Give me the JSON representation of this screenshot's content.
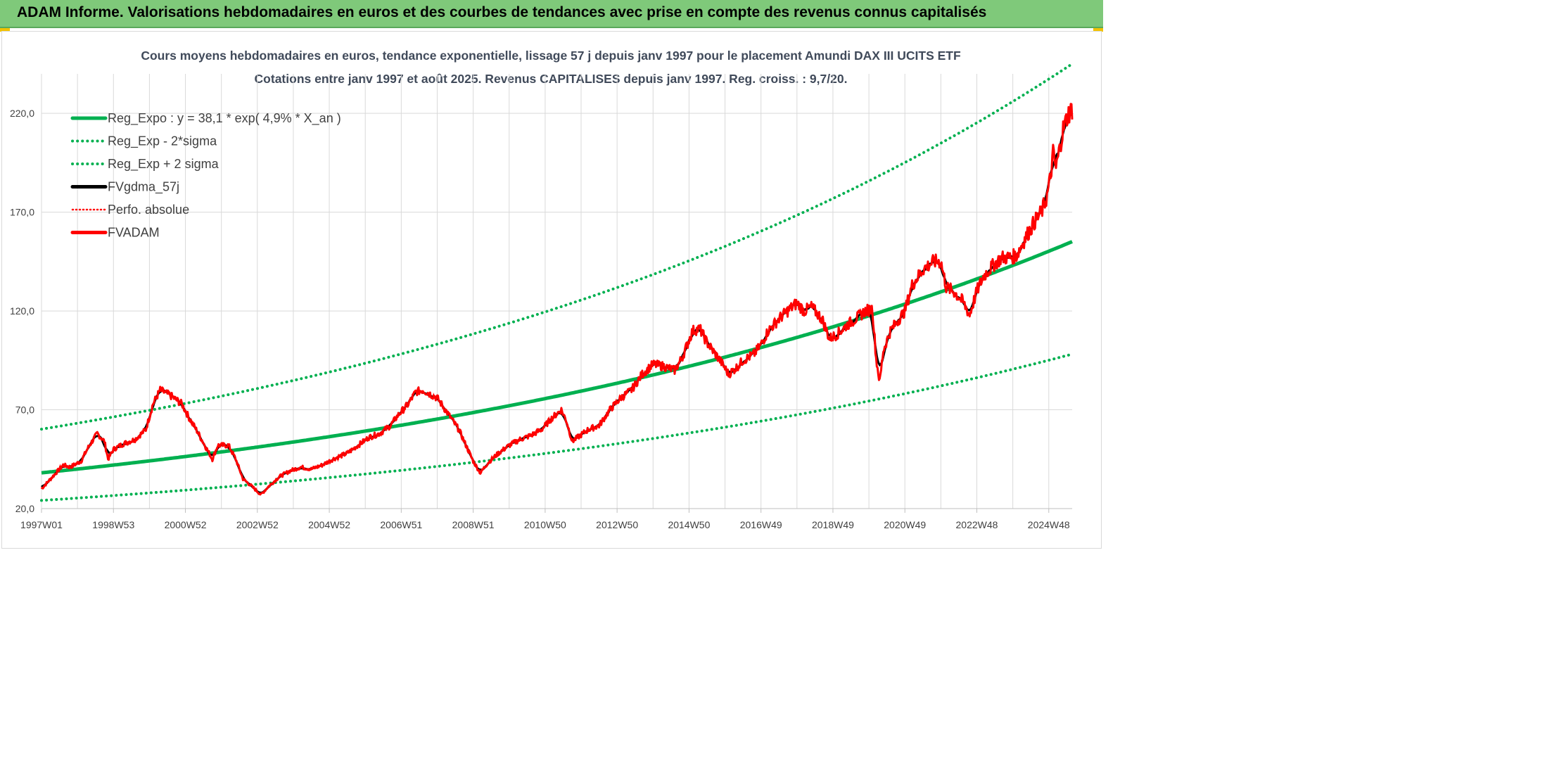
{
  "banner": {
    "title": "ADAM Informe. Valorisations hebdomadaires en euros et des courbes de tendances avec prise en compte des revenus connus capitalisés"
  },
  "colors": {
    "banner_bg": "#7fc97a",
    "regression": "#00b050",
    "smoothed": "#000000",
    "price": "#ff0000",
    "perfo": "#ff0000",
    "grid": "#d9d9d9"
  },
  "chart_data": {
    "type": "line",
    "title": "Cours moyens hebdomadaires en euros, tendance exponentielle, lissage 57 j depuis janv 1997 pour le placement Amundi DAX III UCITS ETF",
    "subtitle": "Cotations entre janv 1997 et août 2025. Revenus CAPITALISES depuis janv 1997. Reg. croiss. : 9,7/20.",
    "ylim": [
      20,
      240
    ],
    "yticks": [
      20,
      70,
      120,
      170,
      220
    ],
    "ytick_labels": [
      "20,0",
      "70,0",
      "120,0",
      "170,0",
      "220,0"
    ],
    "xlim": [
      1997.0,
      2025.65
    ],
    "xticks": [
      {
        "x": 1997.0,
        "label": "1997W01"
      },
      {
        "x": 1999.0,
        "label": "1998W53"
      },
      {
        "x": 2001.0,
        "label": "2000W52"
      },
      {
        "x": 2003.0,
        "label": "2002W52"
      },
      {
        "x": 2005.0,
        "label": "2004W52"
      },
      {
        "x": 2007.0,
        "label": "2006W51"
      },
      {
        "x": 2009.0,
        "label": "2008W51"
      },
      {
        "x": 2011.0,
        "label": "2010W50"
      },
      {
        "x": 2013.0,
        "label": "2012W50"
      },
      {
        "x": 2015.0,
        "label": "2014W50"
      },
      {
        "x": 2017.0,
        "label": "2016W49"
      },
      {
        "x": 2019.0,
        "label": "2018W49"
      },
      {
        "x": 2021.0,
        "label": "2020W49"
      },
      {
        "x": 2023.0,
        "label": "2022W48"
      },
      {
        "x": 2025.0,
        "label": "2024W48"
      }
    ],
    "legend_position": "top-left",
    "regression": {
      "a": 38.1,
      "rate": 0.049,
      "sigma_factor": 1.58
    },
    "series": [
      {
        "name": "Reg_Expo : y = 38,1 * exp( 4,9% *  X_an )",
        "key": "reg",
        "color": "#00b050",
        "style": "solid"
      },
      {
        "name": "Reg_Exp - 2*sigma",
        "key": "reg_low",
        "color": "#00b050",
        "style": "dotted"
      },
      {
        "name": "Reg_Exp + 2 sigma",
        "key": "reg_high",
        "color": "#00b050",
        "style": "dotted"
      },
      {
        "name": "FVgdma_57j",
        "key": "smooth",
        "color": "#000000",
        "style": "solid"
      },
      {
        "name": "Perfo. absolue",
        "key": "perfo",
        "color": "#ff0000",
        "style": "dotted"
      },
      {
        "name": "FVADAM",
        "key": "price",
        "color": "#ff0000",
        "style": "solid"
      }
    ],
    "price_points": [
      [
        1997.0,
        30
      ],
      [
        1997.3,
        36
      ],
      [
        1997.6,
        42
      ],
      [
        1997.8,
        41
      ],
      [
        1998.1,
        44
      ],
      [
        1998.3,
        51
      ],
      [
        1998.55,
        58
      ],
      [
        1998.75,
        54
      ],
      [
        1998.85,
        45
      ],
      [
        1999.0,
        50
      ],
      [
        1999.3,
        53
      ],
      [
        1999.6,
        55
      ],
      [
        1999.9,
        60
      ],
      [
        2000.1,
        73
      ],
      [
        2000.3,
        80
      ],
      [
        2000.6,
        77
      ],
      [
        2000.9,
        73
      ],
      [
        2001.1,
        66
      ],
      [
        2001.3,
        60
      ],
      [
        2001.6,
        50
      ],
      [
        2001.75,
        45
      ],
      [
        2001.9,
        52
      ],
      [
        2002.2,
        52
      ],
      [
        2002.4,
        45
      ],
      [
        2002.6,
        35
      ],
      [
        2002.8,
        32
      ],
      [
        2003.1,
        27
      ],
      [
        2003.3,
        31
      ],
      [
        2003.6,
        36
      ],
      [
        2003.9,
        39
      ],
      [
        2004.2,
        41
      ],
      [
        2004.5,
        40
      ],
      [
        2004.8,
        42
      ],
      [
        2005.1,
        45
      ],
      [
        2005.5,
        48
      ],
      [
        2005.8,
        52
      ],
      [
        2006.1,
        56
      ],
      [
        2006.4,
        58
      ],
      [
        2006.7,
        62
      ],
      [
        2006.9,
        67
      ],
      [
        2007.2,
        73
      ],
      [
        2007.4,
        79
      ],
      [
        2007.6,
        80
      ],
      [
        2007.8,
        78
      ],
      [
        2008.0,
        76
      ],
      [
        2008.3,
        68
      ],
      [
        2008.6,
        60
      ],
      [
        2008.85,
        50
      ],
      [
        2009.0,
        44
      ],
      [
        2009.2,
        38
      ],
      [
        2009.4,
        43
      ],
      [
        2009.7,
        48
      ],
      [
        2010.0,
        52
      ],
      [
        2010.3,
        55
      ],
      [
        2010.6,
        57
      ],
      [
        2010.9,
        60
      ],
      [
        2011.2,
        66
      ],
      [
        2011.45,
        70
      ],
      [
        2011.6,
        64
      ],
      [
        2011.75,
        54
      ],
      [
        2011.9,
        56
      ],
      [
        2012.2,
        60
      ],
      [
        2012.5,
        62
      ],
      [
        2012.8,
        70
      ],
      [
        2013.1,
        76
      ],
      [
        2013.4,
        80
      ],
      [
        2013.7,
        88
      ],
      [
        2014.0,
        93
      ],
      [
        2014.3,
        92
      ],
      [
        2014.6,
        90
      ],
      [
        2014.8,
        96
      ],
      [
        2015.1,
        110
      ],
      [
        2015.3,
        111
      ],
      [
        2015.5,
        104
      ],
      [
        2015.7,
        99
      ],
      [
        2015.9,
        94
      ],
      [
        2016.1,
        88
      ],
      [
        2016.3,
        91
      ],
      [
        2016.5,
        95
      ],
      [
        2016.8,
        98
      ],
      [
        2017.0,
        103
      ],
      [
        2017.2,
        110
      ],
      [
        2017.5,
        116
      ],
      [
        2017.8,
        121
      ],
      [
        2018.0,
        124
      ],
      [
        2018.2,
        120
      ],
      [
        2018.4,
        122
      ],
      [
        2018.7,
        116
      ],
      [
        2018.9,
        106
      ],
      [
        2019.1,
        108
      ],
      [
        2019.4,
        113
      ],
      [
        2019.7,
        117
      ],
      [
        2019.9,
        120
      ],
      [
        2020.1,
        121
      ],
      [
        2020.2,
        96
      ],
      [
        2020.3,
        84
      ],
      [
        2020.4,
        100
      ],
      [
        2020.6,
        110
      ],
      [
        2020.8,
        115
      ],
      [
        2021.0,
        120
      ],
      [
        2021.2,
        133
      ],
      [
        2021.5,
        141
      ],
      [
        2021.8,
        145
      ],
      [
        2022.0,
        145
      ],
      [
        2022.15,
        132
      ],
      [
        2022.35,
        130
      ],
      [
        2022.6,
        125
      ],
      [
        2022.8,
        118
      ],
      [
        2023.0,
        130
      ],
      [
        2023.2,
        138
      ],
      [
        2023.5,
        144
      ],
      [
        2023.7,
        147
      ],
      [
        2023.9,
        147
      ],
      [
        2024.1,
        148
      ],
      [
        2024.35,
        157
      ],
      [
        2024.6,
        165
      ],
      [
        2024.8,
        170
      ],
      [
        2024.95,
        178
      ],
      [
        2025.05,
        188
      ],
      [
        2025.12,
        200
      ],
      [
        2025.2,
        192
      ],
      [
        2025.28,
        200
      ],
      [
        2025.4,
        212
      ],
      [
        2025.55,
        220
      ],
      [
        2025.65,
        222
      ]
    ]
  }
}
